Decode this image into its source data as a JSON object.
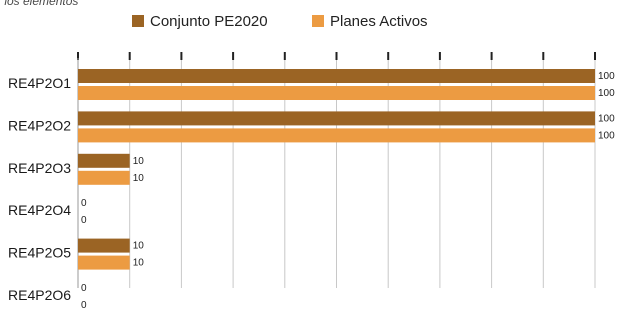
{
  "header": {
    "title_fragment": "r los elementos"
  },
  "chart_data": {
    "type": "bar",
    "orientation": "horizontal",
    "categories": [
      "RE4P2O1",
      "RE4P2O2",
      "RE4P2O3",
      "RE4P2O4",
      "RE4P2O5",
      "RE4P2O6"
    ],
    "series": [
      {
        "name": "Conjunto PE2020",
        "color": "#9b6424",
        "values": [
          100,
          100,
          10,
          0,
          10,
          0
        ]
      },
      {
        "name": "Planes Activos",
        "color": "#ec9b42",
        "values": [
          100,
          100,
          10,
          0,
          10,
          0
        ]
      }
    ],
    "xlim": [
      0,
      100
    ],
    "grid": true,
    "legend": "top"
  }
}
